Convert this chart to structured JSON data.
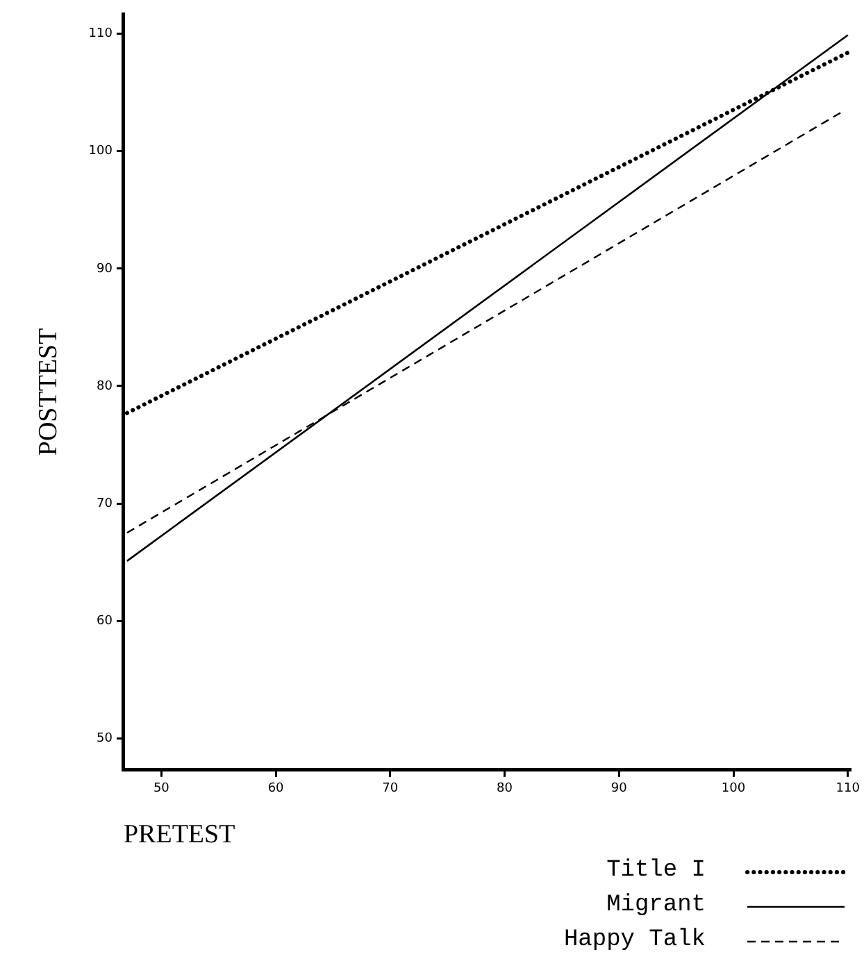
{
  "chart_data": {
    "type": "line",
    "xlabel": "PRETEST",
    "ylabel": "POSTTEST",
    "x": [
      47,
      110
    ],
    "series": [
      {
        "name": "Title I",
        "color": "#000000",
        "line_style": "dotted",
        "values": [
          77.7,
          108.4
        ]
      },
      {
        "name": "Migrant",
        "color": "#000000",
        "line_style": "solid",
        "values": [
          65.1,
          109.9
        ]
      },
      {
        "name": "Happy Talk",
        "color": "#000000",
        "line_style": "dashed",
        "values": [
          67.5,
          103.3
        ],
        "x": [
          47,
          109.4
        ]
      }
    ],
    "xlim": [
      46.7,
      110.2
    ],
    "xticks": [
      50,
      60,
      70,
      80,
      90,
      100,
      110
    ],
    "ylim": [
      47.3,
      111.7
    ],
    "yticks": [
      50,
      60,
      70,
      80,
      90,
      100,
      110
    ],
    "grid": false,
    "legend": "bottom right",
    "marker": "none"
  }
}
